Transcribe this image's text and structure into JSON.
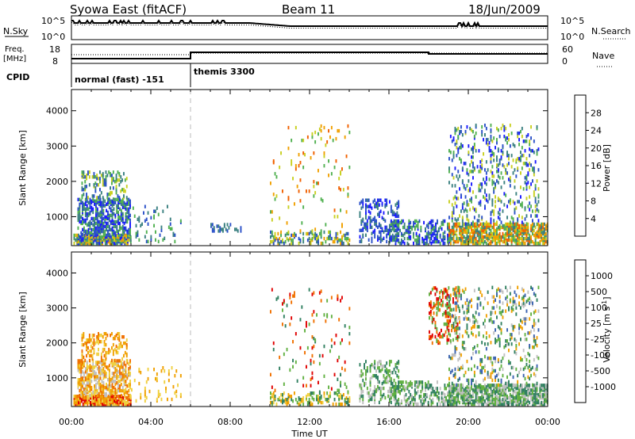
{
  "header": {
    "station": "Syowa East (fitACF)",
    "beam": "Beam 11",
    "date": "18/Jun/2009"
  },
  "status_panels": {
    "nsky": {
      "label": "N.Sky",
      "ticks_left": [
        "10^5",
        "10^0"
      ],
      "ticks_right": [
        "10^5",
        "10^0"
      ],
      "right_label": "N.Search"
    },
    "freq": {
      "label_line1": "Freq.",
      "label_line2": "[MHz]",
      "ticks_left": [
        "18",
        "8"
      ],
      "ticks_right": [
        "60",
        "0"
      ],
      "right_label": "Nave"
    },
    "cpid": {
      "label": "CPID",
      "modes": [
        {
          "name": "normal (fast) -151",
          "start_hour": 0,
          "end_hour": 6
        },
        {
          "name": "themis 3300",
          "start_hour": 6,
          "end_hour": 24
        }
      ]
    }
  },
  "x_axis": {
    "ticks": [
      "00:00",
      "04:00",
      "08:00",
      "12:00",
      "16:00",
      "20:00",
      "00:00"
    ],
    "label": "Time UT",
    "range_hours": [
      0,
      24
    ]
  },
  "chart_data": [
    {
      "type": "heatmap",
      "name": "power",
      "ylabel": "Slant Range [km]",
      "yticks": [
        "1000",
        "2000",
        "3000",
        "4000"
      ],
      "ylim": [
        180,
        4600
      ],
      "colorbar": {
        "label": "Power [dB]",
        "ticks": [
          "4",
          "8",
          "12",
          "16",
          "20",
          "24",
          "28"
        ],
        "colors": [
          "#1a1aff",
          "#2a50c8",
          "#3a8080",
          "#50b050",
          "#c8d020",
          "#f0a000",
          "#f06000",
          "#e00000"
        ]
      },
      "clusters": [
        {
          "t": [
            0.1,
            3.0
          ],
          "r": [
            250,
            500
          ],
          "density": 0.8,
          "palette": [
            0,
            1,
            2,
            3,
            4,
            5
          ]
        },
        {
          "t": [
            0.3,
            3.0
          ],
          "r": [
            500,
            1500
          ],
          "density": 0.45,
          "palette": [
            0,
            1,
            2,
            3
          ]
        },
        {
          "t": [
            0.5,
            2.8
          ],
          "r": [
            1500,
            2300
          ],
          "density": 0.22,
          "palette": [
            1,
            2,
            3,
            4
          ]
        },
        {
          "t": [
            3.0,
            5.5
          ],
          "r": [
            300,
            1300
          ],
          "density": 0.06,
          "palette": [
            1,
            2,
            3
          ]
        },
        {
          "t": [
            7.0,
            8.5
          ],
          "r": [
            600,
            800
          ],
          "density": 0.25,
          "palette": [
            1,
            2
          ]
        },
        {
          "t": [
            10.0,
            14.0
          ],
          "r": [
            250,
            600
          ],
          "density": 0.3,
          "palette": [
            1,
            2,
            3,
            4,
            5
          ]
        },
        {
          "t": [
            10.0,
            14.0
          ],
          "r": [
            600,
            3600
          ],
          "density": 0.03,
          "palette": [
            3,
            4,
            5,
            6
          ]
        },
        {
          "t": [
            14.5,
            16.5
          ],
          "r": [
            300,
            1500
          ],
          "density": 0.25,
          "palette": [
            0,
            1,
            2
          ]
        },
        {
          "t": [
            16.0,
            19.0
          ],
          "r": [
            250,
            900
          ],
          "density": 0.35,
          "palette": [
            0,
            1,
            2,
            3
          ]
        },
        {
          "t": [
            19.0,
            24.0
          ],
          "r": [
            250,
            800
          ],
          "density": 0.6,
          "palette": [
            2,
            3,
            4,
            5,
            6
          ]
        },
        {
          "t": [
            19.0,
            23.5
          ],
          "r": [
            800,
            3600
          ],
          "density": 0.12,
          "palette": [
            0,
            1,
            2,
            3,
            4
          ]
        }
      ]
    },
    {
      "type": "heatmap",
      "name": "velocity",
      "ylabel": "Slant Range [km]",
      "yticks": [
        "1000",
        "2000",
        "3000",
        "4000"
      ],
      "ylim": [
        180,
        4600
      ],
      "colorbar": {
        "label": "Velocity [m s^-1]",
        "ticks": [
          "1000",
          "500",
          "100",
          "25",
          "-25",
          "-100",
          "-500",
          "-1000"
        ],
        "colors": [
          "#1a2ad0",
          "#3a62b0",
          "#308060",
          "#60b040",
          "#c0c0c0",
          "#f0d040",
          "#f0a000",
          "#f07000",
          "#e00000"
        ]
      },
      "clusters": [
        {
          "t": [
            0.1,
            3.0
          ],
          "r": [
            250,
            500
          ],
          "density": 0.8,
          "palette": [
            5,
            6,
            7,
            8
          ]
        },
        {
          "t": [
            0.3,
            3.0
          ],
          "r": [
            500,
            1500
          ],
          "density": 0.45,
          "palette": [
            4,
            5,
            6,
            7
          ]
        },
        {
          "t": [
            0.5,
            2.8
          ],
          "r": [
            1500,
            2300
          ],
          "density": 0.22,
          "palette": [
            5,
            6,
            7
          ]
        },
        {
          "t": [
            3.0,
            5.5
          ],
          "r": [
            300,
            1300
          ],
          "density": 0.06,
          "palette": [
            5,
            6
          ]
        },
        {
          "t": [
            10.0,
            14.0
          ],
          "r": [
            250,
            600
          ],
          "density": 0.3,
          "palette": [
            2,
            3,
            5,
            6
          ]
        },
        {
          "t": [
            10.0,
            14.0
          ],
          "r": [
            600,
            3600
          ],
          "density": 0.03,
          "palette": [
            2,
            3,
            7,
            8
          ]
        },
        {
          "t": [
            14.5,
            16.5
          ],
          "r": [
            300,
            1500
          ],
          "density": 0.25,
          "palette": [
            2,
            3,
            4
          ]
        },
        {
          "t": [
            16.0,
            19.0
          ],
          "r": [
            250,
            900
          ],
          "density": 0.35,
          "palette": [
            2,
            3,
            4
          ]
        },
        {
          "t": [
            18.0,
            19.5
          ],
          "r": [
            2000,
            3600
          ],
          "density": 0.2,
          "palette": [
            7,
            8,
            3
          ]
        },
        {
          "t": [
            19.0,
            24.0
          ],
          "r": [
            250,
            800
          ],
          "density": 0.6,
          "palette": [
            2,
            3,
            4
          ]
        },
        {
          "t": [
            19.0,
            23.5
          ],
          "r": [
            800,
            3600
          ],
          "density": 0.12,
          "palette": [
            1,
            2,
            3,
            4,
            6
          ]
        }
      ]
    }
  ]
}
